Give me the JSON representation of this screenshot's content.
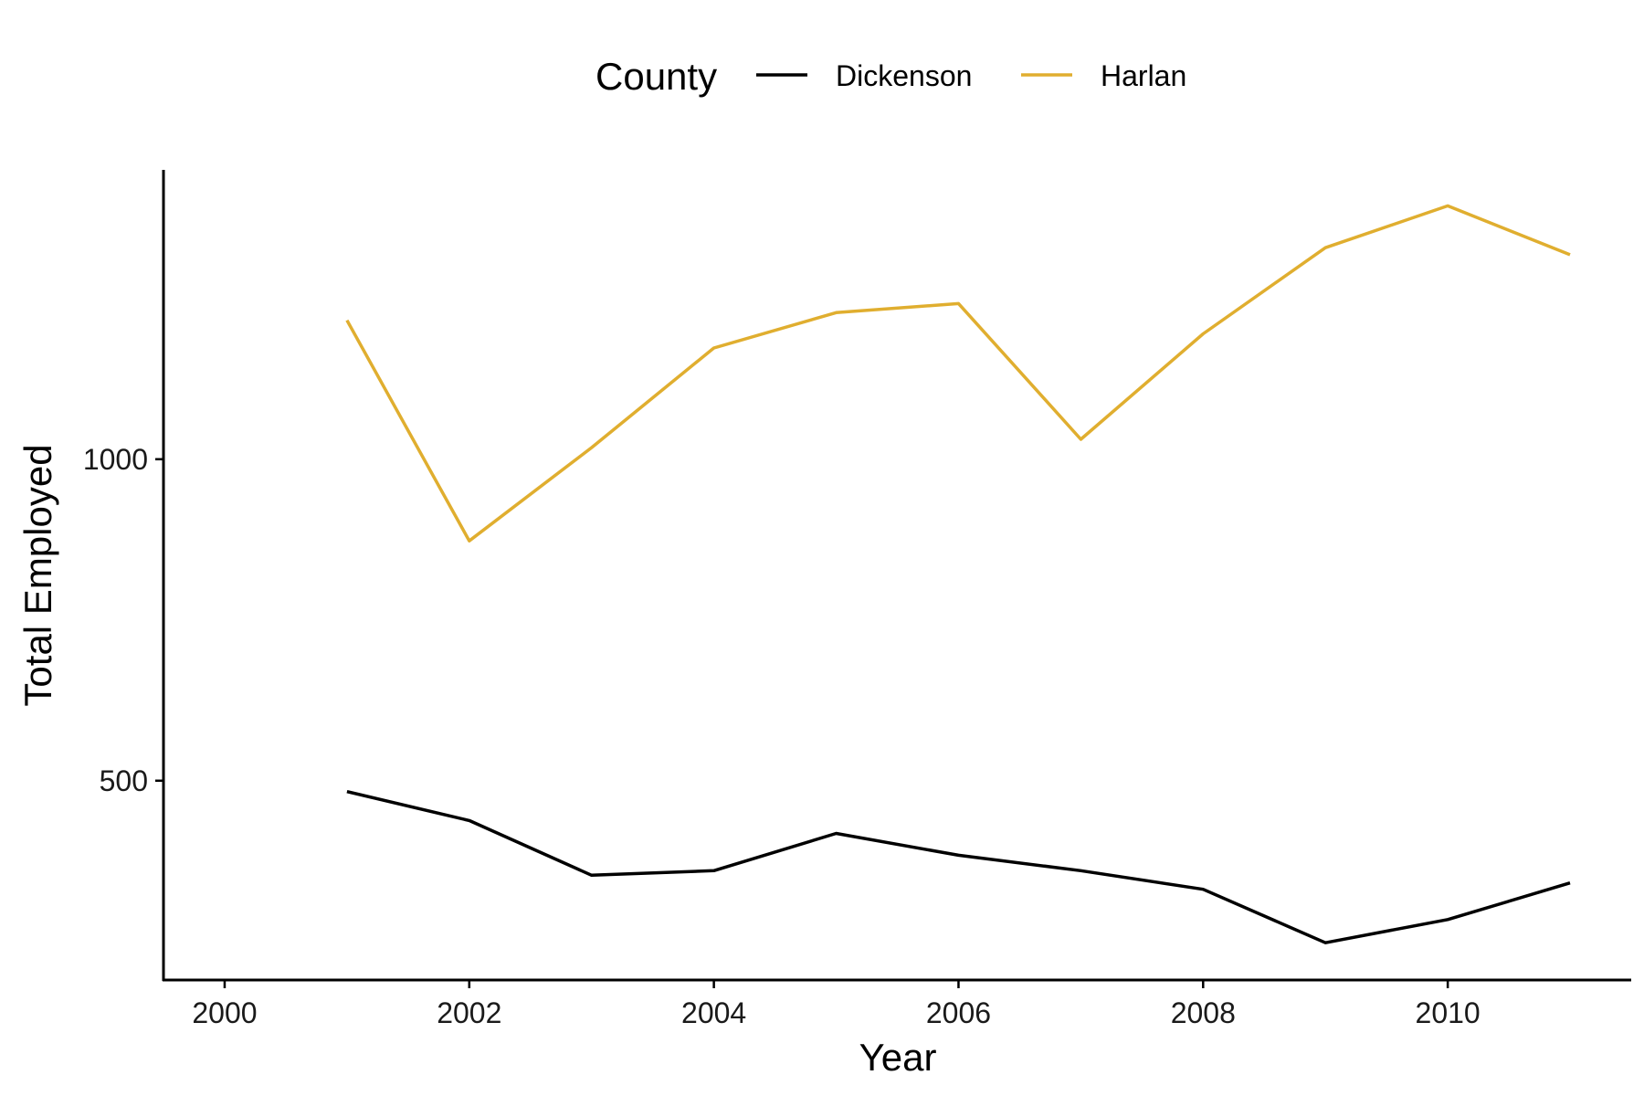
{
  "chart_data": {
    "type": "line",
    "title": "",
    "xlabel": "Year",
    "ylabel": "Total Employed",
    "xlim": [
      1999.5,
      2011.5
    ],
    "ylim": [
      190,
      1450
    ],
    "x_ticks": [
      2000,
      2002,
      2004,
      2006,
      2008,
      2010
    ],
    "y_ticks": [
      500,
      1000
    ],
    "grid": false,
    "legend": {
      "title": "County",
      "position": "top"
    },
    "x": [
      2001,
      2002,
      2003,
      2004,
      2005,
      2006,
      2007,
      2008,
      2009,
      2010,
      2011
    ],
    "series": [
      {
        "name": "Dickenson",
        "color": "#000000",
        "values": [
          483,
          438,
          353,
          360,
          418,
          384,
          360,
          331,
          248,
          284,
          341
        ]
      },
      {
        "name": "Harlan",
        "color": "#E0AE2F",
        "values": [
          1216,
          873,
          1018,
          1173,
          1228,
          1242,
          1031,
          1195,
          1329,
          1394,
          1318
        ]
      }
    ]
  }
}
